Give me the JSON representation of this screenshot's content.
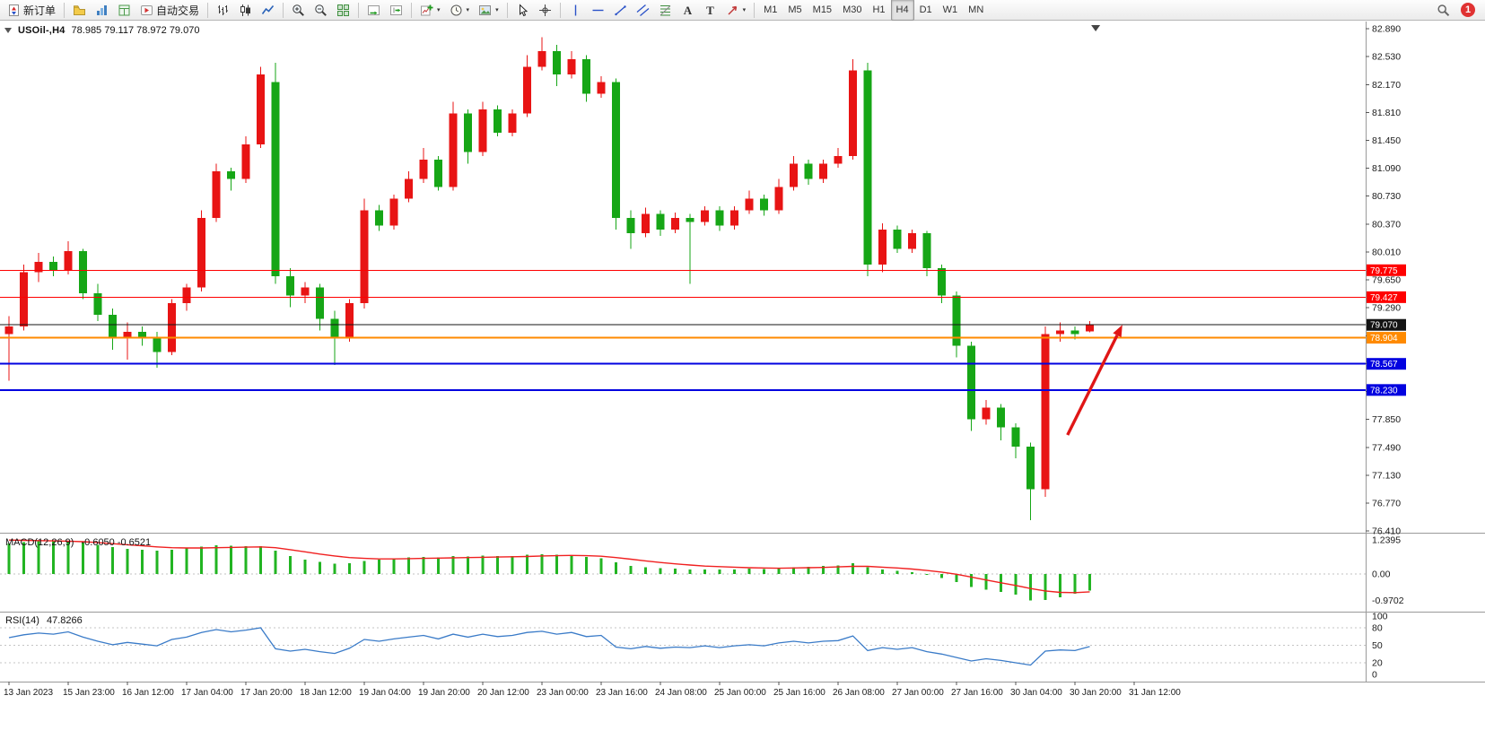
{
  "toolbar": {
    "groups": [
      {
        "name": "trade",
        "items": [
          {
            "name": "new-order-button",
            "icon": "new-order",
            "label": "新订单"
          }
        ]
      },
      {
        "name": "windows",
        "items": [
          {
            "name": "profiles-button",
            "icon": "profiles"
          },
          {
            "name": "market-watch-button",
            "icon": "market-watch"
          },
          {
            "name": "data-window-button",
            "icon": "data-window"
          },
          {
            "name": "auto-trading-button",
            "icon": "auto-trading",
            "label": "自动交易"
          }
        ]
      },
      {
        "name": "chart-type",
        "items": [
          {
            "name": "bar-chart-button",
            "icon": "bar-chart"
          },
          {
            "name": "candlestick-button",
            "icon": "candlestick"
          },
          {
            "name": "line-chart-button",
            "icon": "line-chart"
          }
        ]
      },
      {
        "name": "zoom",
        "items": [
          {
            "name": "zoom-in-button",
            "icon": "zoom-in"
          },
          {
            "name": "zoom-out-button",
            "icon": "zoom-out"
          },
          {
            "name": "tile-windows-button",
            "icon": "tile-windows"
          }
        ]
      },
      {
        "name": "scroll",
        "items": [
          {
            "name": "auto-scroll-button",
            "icon": "auto-scroll"
          },
          {
            "name": "chart-shift-button",
            "icon": "chart-shift"
          }
        ]
      },
      {
        "name": "new",
        "items": [
          {
            "name": "new-chart-button",
            "icon": "new-chart",
            "caret": true
          },
          {
            "name": "periods-button",
            "icon": "clock",
            "caret": true
          },
          {
            "name": "templates-button",
            "icon": "template",
            "caret": true
          }
        ]
      },
      {
        "name": "pointer",
        "items": [
          {
            "name": "cursor-button",
            "icon": "cursor"
          },
          {
            "name": "crosshair-button",
            "icon": "crosshair"
          }
        ]
      },
      {
        "name": "drawing",
        "items": [
          {
            "name": "vertical-line-button",
            "icon": "vertical-line"
          },
          {
            "name": "horizontal-line-button",
            "icon": "horizontal-line"
          },
          {
            "name": "trendline-button",
            "icon": "trendline"
          },
          {
            "name": "channel-button",
            "icon": "channel"
          },
          {
            "name": "fibonacci-button",
            "icon": "fibonacci"
          },
          {
            "name": "text-button",
            "icon": "text"
          },
          {
            "name": "label-button",
            "icon": "label"
          },
          {
            "name": "arrows-button",
            "icon": "arrows",
            "caret": true
          }
        ]
      },
      {
        "name": "timeframes",
        "items": [
          {
            "name": "tf-m1-button",
            "label": "M1"
          },
          {
            "name": "tf-m5-button",
            "label": "M5"
          },
          {
            "name": "tf-m15-button",
            "label": "M15"
          },
          {
            "name": "tf-m30-button",
            "label": "M30"
          },
          {
            "name": "tf-h1-button",
            "label": "H1"
          },
          {
            "name": "tf-h4-button",
            "label": "H4",
            "active": true
          },
          {
            "name": "tf-d1-button",
            "label": "D1"
          },
          {
            "name": "tf-w1-button",
            "label": "W1"
          },
          {
            "name": "tf-mn-button",
            "label": "MN"
          }
        ]
      }
    ],
    "right": [
      {
        "name": "search-button",
        "icon": "search"
      },
      {
        "name": "notification-badge",
        "badge": "1"
      }
    ]
  },
  "chart": {
    "title": {
      "symbol_period": "USOil-,H4",
      "ohlc": "78.985 79.117 78.972 79.070"
    }
  },
  "chart_data": {
    "type": "candlestick",
    "symbol": "USOil-",
    "timeframe": "H4",
    "last_bar": {
      "open": 78.985,
      "high": 79.117,
      "low": 78.972,
      "close": 79.07
    },
    "colors": {
      "bullish": "#e81414",
      "bearish": "#16a616",
      "background": "#ffffff",
      "axis_text": "#1a1a1a"
    },
    "price_axis": {
      "visible_range": [
        76.4,
        82.96
      ],
      "tick_labels": [
        "82.890",
        "82.530",
        "82.170",
        "81.810",
        "81.450",
        "81.090",
        "80.730",
        "80.370",
        "80.010",
        "79.650",
        "79.290",
        "78.930",
        "78.570",
        "78.210",
        "77.850",
        "77.490",
        "77.130",
        "76.770",
        "76.410"
      ]
    },
    "time_axis": {
      "bars_per_label": 4,
      "labels": [
        "13 Jan 2023",
        "15 Jan 23:00",
        "16 Jan 12:00",
        "17 Jan 04:00",
        "17 Jan 20:00",
        "18 Jan 12:00",
        "19 Jan 04:00",
        "19 Jan 20:00",
        "20 Jan 12:00",
        "23 Jan 00:00",
        "23 Jan 16:00",
        "24 Jan 08:00",
        "25 Jan 00:00",
        "25 Jan 16:00",
        "26 Jan 08:00",
        "27 Jan 00:00",
        "27 Jan 16:00",
        "30 Jan 04:00",
        "30 Jan 20:00",
        "31 Jan 12:00"
      ]
    },
    "candles": [
      [
        78.95,
        79.18,
        78.35,
        79.05
      ],
      [
        79.05,
        79.85,
        79.0,
        79.75
      ],
      [
        79.75,
        80.0,
        79.62,
        79.88
      ],
      [
        79.88,
        79.95,
        79.7,
        79.78
      ],
      [
        79.78,
        80.15,
        79.72,
        80.02
      ],
      [
        80.02,
        80.05,
        79.4,
        79.48
      ],
      [
        79.48,
        79.6,
        79.12,
        79.2
      ],
      [
        79.2,
        79.28,
        78.75,
        78.9
      ],
      [
        78.9,
        79.1,
        78.62,
        78.98
      ],
      [
        78.98,
        79.05,
        78.8,
        78.9
      ],
      [
        78.9,
        78.98,
        78.52,
        78.72
      ],
      [
        78.72,
        79.4,
        78.68,
        79.35
      ],
      [
        79.35,
        79.6,
        79.25,
        79.55
      ],
      [
        79.55,
        80.55,
        79.5,
        80.45
      ],
      [
        80.45,
        81.15,
        80.4,
        81.05
      ],
      [
        81.05,
        81.1,
        80.8,
        80.95
      ],
      [
        80.95,
        81.5,
        80.9,
        81.4
      ],
      [
        81.4,
        82.4,
        81.35,
        82.3
      ],
      [
        82.2,
        82.45,
        79.6,
        79.7
      ],
      [
        79.7,
        79.8,
        79.3,
        79.45
      ],
      [
        79.45,
        79.62,
        79.35,
        79.55
      ],
      [
        79.55,
        79.6,
        79.0,
        79.15
      ],
      [
        79.15,
        79.25,
        78.55,
        78.9
      ],
      [
        78.9,
        79.4,
        78.85,
        79.35
      ],
      [
        79.35,
        80.7,
        79.28,
        80.55
      ],
      [
        80.55,
        80.62,
        80.28,
        80.35
      ],
      [
        80.35,
        80.75,
        80.3,
        80.7
      ],
      [
        80.7,
        81.05,
        80.65,
        80.95
      ],
      [
        80.95,
        81.35,
        80.9,
        81.2
      ],
      [
        81.2,
        81.25,
        80.8,
        80.85
      ],
      [
        80.85,
        81.95,
        80.8,
        81.8
      ],
      [
        81.8,
        81.85,
        81.15,
        81.3
      ],
      [
        81.3,
        81.95,
        81.25,
        81.85
      ],
      [
        81.85,
        81.9,
        81.5,
        81.55
      ],
      [
        81.55,
        81.85,
        81.5,
        81.8
      ],
      [
        81.8,
        82.55,
        81.75,
        82.4
      ],
      [
        82.4,
        82.78,
        82.35,
        82.6
      ],
      [
        82.6,
        82.68,
        82.15,
        82.3
      ],
      [
        82.3,
        82.6,
        82.25,
        82.5
      ],
      [
        82.5,
        82.55,
        81.95,
        82.05
      ],
      [
        82.05,
        82.28,
        82.0,
        82.2
      ],
      [
        82.2,
        82.25,
        80.3,
        80.45
      ],
      [
        80.45,
        80.55,
        80.05,
        80.25
      ],
      [
        80.25,
        80.58,
        80.2,
        80.5
      ],
      [
        80.5,
        80.55,
        80.22,
        80.3
      ],
      [
        80.3,
        80.52,
        80.25,
        80.45
      ],
      [
        80.45,
        80.5,
        79.6,
        80.4
      ],
      [
        80.4,
        80.6,
        80.35,
        80.55
      ],
      [
        80.55,
        80.6,
        80.28,
        80.35
      ],
      [
        80.35,
        80.6,
        80.3,
        80.55
      ],
      [
        80.55,
        80.8,
        80.5,
        80.7
      ],
      [
        80.7,
        80.75,
        80.48,
        80.55
      ],
      [
        80.55,
        80.95,
        80.5,
        80.85
      ],
      [
        80.85,
        81.25,
        80.8,
        81.15
      ],
      [
        81.15,
        81.2,
        80.88,
        80.95
      ],
      [
        80.95,
        81.2,
        80.9,
        81.15
      ],
      [
        81.15,
        81.35,
        81.1,
        81.25
      ],
      [
        81.25,
        82.5,
        81.2,
        82.35
      ],
      [
        82.35,
        82.45,
        79.7,
        79.85
      ],
      [
        79.85,
        80.38,
        79.75,
        80.3
      ],
      [
        80.3,
        80.35,
        80.0,
        80.05
      ],
      [
        80.05,
        80.3,
        80.0,
        80.25
      ],
      [
        80.25,
        80.28,
        79.7,
        79.8
      ],
      [
        79.8,
        79.85,
        79.35,
        79.45
      ],
      [
        79.45,
        79.5,
        78.65,
        78.8
      ],
      [
        78.8,
        78.85,
        77.7,
        77.85
      ],
      [
        77.85,
        78.1,
        77.78,
        78.0
      ],
      [
        78.0,
        78.05,
        77.58,
        77.75
      ],
      [
        77.75,
        77.8,
        77.35,
        77.5
      ],
      [
        77.5,
        77.55,
        76.55,
        76.95
      ],
      [
        76.95,
        79.05,
        76.85,
        78.95
      ],
      [
        78.95,
        79.1,
        78.85,
        79.0
      ],
      [
        79.0,
        79.05,
        78.88,
        78.95
      ],
      [
        78.985,
        79.117,
        78.972,
        79.07
      ]
    ],
    "horizontal_levels": [
      {
        "label": "79.775",
        "price": 79.775,
        "color": "#ff0000",
        "width": 1
      },
      {
        "label": "79.427",
        "price": 79.427,
        "color": "#ff0000",
        "width": 1
      },
      {
        "label": "79.070",
        "price": 79.07,
        "color": "#141414",
        "width": 1
      },
      {
        "label": "78.904",
        "price": 78.904,
        "color": "#ff8a00",
        "width": 2
      },
      {
        "label": "78.567",
        "price": 78.567,
        "color": "#0202e0",
        "width": 2
      },
      {
        "label": "78.230",
        "price": 78.23,
        "color": "#0202e0",
        "width": 2
      }
    ],
    "arrow_annotation": {
      "from_bar": 71.5,
      "from_price": 77.65,
      "to_bar": 75.2,
      "to_price": 79.07,
      "color": "#e01616"
    },
    "shift_marker_bar": 73.4,
    "indicators": [
      {
        "id": "macd",
        "label": "MACD(12,26,9)",
        "values_text": "-0.6050 -0.6521",
        "axis_labels": [
          "1.2395",
          "0.00",
          "-0.9702"
        ],
        "axis_values": [
          1.2395,
          0.0,
          -0.9702
        ],
        "histogram_color": "#22b422",
        "signal_color": "#f02020",
        "histogram": [
          1.12,
          1.16,
          1.19,
          1.2,
          1.18,
          1.13,
          1.06,
          0.98,
          0.92,
          0.88,
          0.85,
          0.88,
          0.93,
          1.0,
          1.05,
          1.03,
          1.02,
          1.02,
          0.85,
          0.65,
          0.52,
          0.44,
          0.38,
          0.4,
          0.48,
          0.52,
          0.56,
          0.6,
          0.63,
          0.6,
          0.65,
          0.64,
          0.67,
          0.65,
          0.66,
          0.7,
          0.73,
          0.71,
          0.69,
          0.63,
          0.58,
          0.42,
          0.3,
          0.25,
          0.21,
          0.19,
          0.17,
          0.17,
          0.16,
          0.17,
          0.19,
          0.18,
          0.21,
          0.25,
          0.27,
          0.3,
          0.32,
          0.4,
          0.24,
          0.16,
          0.11,
          0.07,
          -0.04,
          -0.14,
          -0.3,
          -0.48,
          -0.58,
          -0.66,
          -0.76,
          -0.9702,
          -0.95,
          -0.85,
          -0.72,
          -0.605
        ],
        "signal": [
          1.2395,
          1.23,
          1.22,
          1.21,
          1.2,
          1.18,
          1.15,
          1.11,
          1.07,
          1.03,
          0.99,
          0.96,
          0.95,
          0.95,
          0.96,
          0.97,
          0.98,
          0.99,
          0.96,
          0.89,
          0.81,
          0.73,
          0.66,
          0.6,
          0.57,
          0.55,
          0.55,
          0.56,
          0.57,
          0.58,
          0.59,
          0.6,
          0.61,
          0.62,
          0.63,
          0.64,
          0.66,
          0.67,
          0.68,
          0.67,
          0.65,
          0.6,
          0.54,
          0.48,
          0.42,
          0.37,
          0.33,
          0.29,
          0.27,
          0.25,
          0.23,
          0.22,
          0.21,
          0.22,
          0.23,
          0.24,
          0.26,
          0.28,
          0.28,
          0.25,
          0.22,
          0.18,
          0.13,
          0.07,
          -0.01,
          -0.11,
          -0.22,
          -0.32,
          -0.42,
          -0.53,
          -0.62,
          -0.67,
          -0.68,
          -0.6521
        ]
      },
      {
        "id": "rsi",
        "label": "RSI(14)",
        "values_text": "47.8266",
        "axis_labels": [
          "100",
          "80",
          "50",
          "20",
          "0"
        ],
        "axis_values": [
          100,
          80,
          50,
          20,
          0
        ],
        "levels": [
          80,
          50,
          20
        ],
        "line_color": "#3a7bc8",
        "values": [
          63,
          68,
          71,
          69,
          73,
          64,
          57,
          51,
          55,
          52,
          49,
          60,
          64,
          72,
          77,
          73,
          76,
          80,
          44,
          40,
          43,
          39,
          36,
          45,
          60,
          57,
          61,
          64,
          67,
          61,
          69,
          64,
          69,
          65,
          67,
          72,
          74,
          69,
          72,
          65,
          67,
          47,
          44,
          48,
          45,
          47,
          46,
          49,
          46,
          49,
          51,
          49,
          54,
          57,
          54,
          57,
          58,
          66,
          41,
          46,
          43,
          46,
          39,
          35,
          29,
          23,
          27,
          24,
          20,
          16,
          40,
          42,
          41,
          47.8266
        ]
      }
    ]
  }
}
